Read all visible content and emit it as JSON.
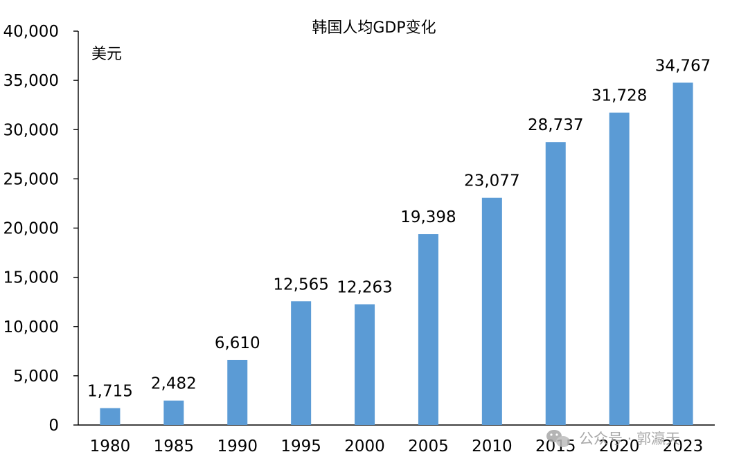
{
  "chart_data": {
    "type": "bar",
    "title": "韩国人均GDP变化",
    "ylabel": "美元",
    "xlabel": "",
    "categories": [
      "1980",
      "1985",
      "1990",
      "1995",
      "2000",
      "2005",
      "2010",
      "2015",
      "2020",
      "2023"
    ],
    "values": [
      1715,
      2482,
      6610,
      12565,
      12263,
      19398,
      23077,
      28737,
      31728,
      34767
    ],
    "value_labels": [
      "1,715",
      "2,482",
      "6,610",
      "12,565",
      "12,263",
      "19,398",
      "23,077",
      "28,737",
      "31,728",
      "34,767"
    ],
    "ylim": [
      0,
      40000
    ],
    "yticks": [
      0,
      5000,
      10000,
      15000,
      20000,
      25000,
      30000,
      35000,
      40000
    ],
    "ytick_labels": [
      "0",
      "5,000",
      "10,000",
      "15,000",
      "20,000",
      "25,000",
      "30,000",
      "35,000",
      "40,000"
    ],
    "bar_color": "#5b9bd5",
    "grid": false,
    "legend": "none"
  },
  "watermark": {
    "text": "公众号 · 郭瀛天"
  }
}
